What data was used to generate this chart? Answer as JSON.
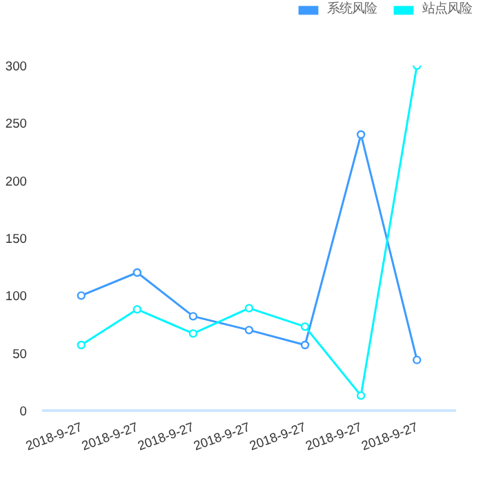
{
  "chart_data": {
    "type": "line",
    "categories": [
      "2018-9-27",
      "2018-9-27",
      "2018-9-27",
      "2018-9-27",
      "2018-9-27",
      "2018-9-27",
      "2018-9-27"
    ],
    "series": [
      {
        "name": "系统风险",
        "color": "#3d9bff",
        "values": [
          100,
          120,
          82,
          70,
          57,
          240,
          44
        ]
      },
      {
        "name": "站点风险",
        "color": "#00f5ff",
        "values": [
          57,
          88,
          67,
          89,
          73,
          13,
          300
        ]
      }
    ],
    "ylim": [
      0,
      300
    ],
    "yticks": [
      0,
      50,
      100,
      150,
      200,
      250,
      300
    ],
    "grid": false,
    "legend": "top right",
    "marker": "circle",
    "line_style": "solid"
  }
}
